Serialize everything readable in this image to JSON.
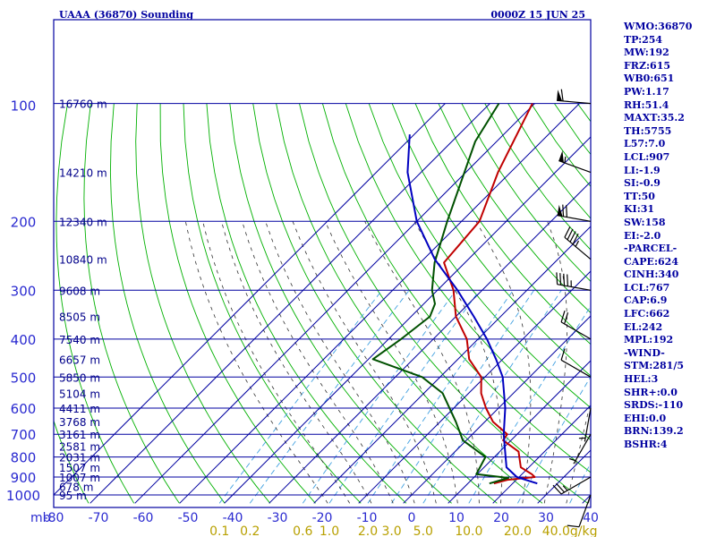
{
  "header": {
    "station": "UAAA (36870) Sounding",
    "time": "0000Z 15 JUN 25"
  },
  "indices": [
    "WMO:36870",
    "TP:254",
    "MW:192",
    "FRZ:615",
    "WB0:651",
    "PW:1.17",
    "RH:51.4",
    "MAXT:35.2",
    "TH:5755",
    "L57:7.0",
    "LCL:907",
    "LI:-1.9",
    "SI:-0.9",
    "TT:50",
    "KI:31",
    "SW:158",
    "EI:-2.0",
    "-PARCEL-",
    "CAPE:624",
    "CINH:340",
    "LCL:767",
    "CAP:6.9",
    "LFC:662",
    "EL:242",
    "MPL:192",
    "-WIND-",
    "STM:281/5",
    "HEL:3",
    "SHR+:0.0",
    "SRDS:-110",
    "EHI:0.0",
    "BRN:139.2",
    "BSHR:4"
  ],
  "colors": {
    "grid": "#0000a0",
    "dry_adiabat": "#00b000",
    "moist_adiabat": "#303030",
    "mixing_ratio": "#40a0e0",
    "temperature": "#c00000",
    "dewpoint": "#005000",
    "parcel": "#0000c0",
    "wind_barb": "#000000"
  },
  "chart_data": {
    "type": "skew-t log-p sounding",
    "y_axis": {
      "unit": "mb",
      "scale": "log",
      "ticks": [
        100,
        200,
        300,
        400,
        500,
        600,
        700,
        800,
        900,
        1000
      ]
    },
    "x_axis": {
      "unit": "°C",
      "ticks": [
        -80,
        -70,
        -60,
        -50,
        -40,
        -30,
        -20,
        -10,
        0,
        10,
        20,
        30,
        40
      ],
      "label_prefix": "mb"
    },
    "mixing_ratio_labels": {
      "unit": "g/kg",
      "values": [
        "0.1",
        "0.2",
        "0.6",
        "1.0",
        "2.0",
        "3.0",
        "5.0",
        "10.0",
        "20.0",
        "40.0"
      ]
    },
    "height_labels": [
      {
        "p": 100,
        "text": "16760 m"
      },
      {
        "p": 150,
        "text": "14210 m"
      },
      {
        "p": 200,
        "text": "12340 m"
      },
      {
        "p": 250,
        "text": "10840 m"
      },
      {
        "p": 300,
        "text": "9608 m"
      },
      {
        "p": 350,
        "text": "8505 m"
      },
      {
        "p": 400,
        "text": "7540 m"
      },
      {
        "p": 450,
        "text": "6657 m"
      },
      {
        "p": 500,
        "text": "5850 m"
      },
      {
        "p": 550,
        "text": "5104 m"
      },
      {
        "p": 600,
        "text": "4411 m"
      },
      {
        "p": 650,
        "text": "3768 m"
      },
      {
        "p": 700,
        "text": "3161 m"
      },
      {
        "p": 750,
        "text": "2581 m"
      },
      {
        "p": 800,
        "text": "2031 m"
      },
      {
        "p": 850,
        "text": "1507 m"
      },
      {
        "p": 900,
        "text": "1007 m"
      },
      {
        "p": 950,
        "text": "678 m"
      },
      {
        "p": 1000,
        "text": "95 m"
      }
    ],
    "series": [
      {
        "key": "temperature",
        "points": [
          {
            "p": 100,
            "t": -60.5
          },
          {
            "p": 150,
            "t": -52.8
          },
          {
            "p": 200,
            "t": -46.0
          },
          {
            "p": 255,
            "t": -44.7
          },
          {
            "p": 300,
            "t": -36.4
          },
          {
            "p": 350,
            "t": -30.0
          },
          {
            "p": 400,
            "t": -22.5
          },
          {
            "p": 450,
            "t": -17.5
          },
          {
            "p": 500,
            "t": -10.8
          },
          {
            "p": 550,
            "t": -7.2
          },
          {
            "p": 600,
            "t": -2.8
          },
          {
            "p": 650,
            "t": 1.8
          },
          {
            "p": 700,
            "t": 7.8
          },
          {
            "p": 725,
            "t": 8.2
          },
          {
            "p": 775,
            "t": 14.2
          },
          {
            "p": 850,
            "t": 18.2
          },
          {
            "p": 885,
            "t": 22.2
          },
          {
            "p": 900,
            "t": 23.5
          },
          {
            "p": 915,
            "t": 18.0
          },
          {
            "p": 935,
            "t": 15.8
          }
        ]
      },
      {
        "key": "dewpoint",
        "points": [
          {
            "p": 100,
            "t": -68.0
          },
          {
            "p": 125,
            "t": -64.8
          },
          {
            "p": 150,
            "t": -60.3
          },
          {
            "p": 200,
            "t": -53.2
          },
          {
            "p": 255,
            "t": -46.8
          },
          {
            "p": 300,
            "t": -41.2
          },
          {
            "p": 325,
            "t": -37.5
          },
          {
            "p": 350,
            "t": -35.8
          },
          {
            "p": 400,
            "t": -37.2
          },
          {
            "p": 450,
            "t": -39.0
          },
          {
            "p": 500,
            "t": -24.0
          },
          {
            "p": 550,
            "t": -15.8
          },
          {
            "p": 650,
            "t": -6.5
          },
          {
            "p": 725,
            "t": -0.8
          },
          {
            "p": 800,
            "t": 8.0
          },
          {
            "p": 885,
            "t": 9.8
          },
          {
            "p": 905,
            "t": 17.8
          },
          {
            "p": 935,
            "t": 14.8
          }
        ]
      },
      {
        "key": "parcel",
        "points": [
          {
            "p": 120,
            "t": -81.0
          },
          {
            "p": 150,
            "t": -73.0
          },
          {
            "p": 200,
            "t": -60.0
          },
          {
            "p": 250,
            "t": -47.5
          },
          {
            "p": 300,
            "t": -35.5
          },
          {
            "p": 350,
            "t": -26.0
          },
          {
            "p": 400,
            "t": -18.0
          },
          {
            "p": 450,
            "t": -11.5
          },
          {
            "p": 500,
            "t": -6.0
          },
          {
            "p": 600,
            "t": 1.5
          },
          {
            "p": 700,
            "t": 7.0
          },
          {
            "p": 800,
            "t": 12.5
          },
          {
            "p": 850,
            "t": 15.0
          },
          {
            "p": 900,
            "t": 19.5
          },
          {
            "p": 935,
            "t": 25.5
          }
        ]
      }
    ],
    "wind_barbs": [
      {
        "p": 100,
        "dir": 275,
        "spd": 60
      },
      {
        "p": 150,
        "dir": 290,
        "spd": 55
      },
      {
        "p": 200,
        "dir": 280,
        "spd": 70
      },
      {
        "p": 250,
        "dir": 310,
        "spd": 45
      },
      {
        "p": 300,
        "dir": 280,
        "spd": 45
      },
      {
        "p": 400,
        "dir": 300,
        "spd": 20
      },
      {
        "p": 500,
        "dir": 300,
        "spd": 10
      },
      {
        "p": 600,
        "dir": 190,
        "spd": 5
      },
      {
        "p": 700,
        "dir": 210,
        "spd": 5
      },
      {
        "p": 900,
        "dir": 240,
        "spd": 25
      },
      {
        "p": 1000,
        "dir": 200,
        "spd": 10
      }
    ]
  }
}
